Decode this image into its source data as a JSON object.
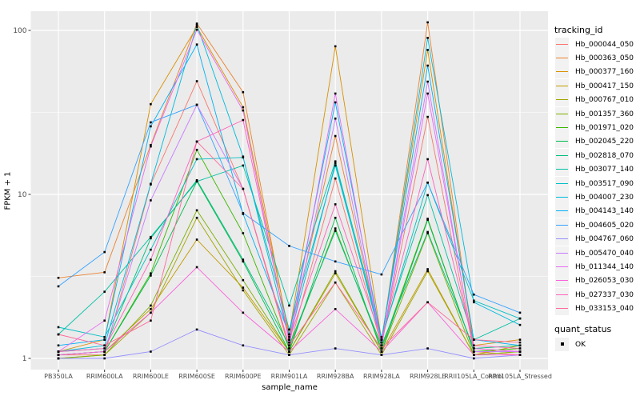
{
  "figure": {
    "panel_background": "#EBEBEB",
    "grid_color": "#FFFFFF",
    "legend_key_background": "#F2F2F2",
    "tick_color": "#333333",
    "tick_label_color": "#4D4D4D",
    "point_color": "#000000"
  },
  "legend": {
    "tracking_title": "tracking_id",
    "quant_title": "quant_status",
    "quant_item_label": "OK"
  },
  "chart_data": {
    "type": "line",
    "title": "",
    "xlabel": "sample_name",
    "ylabel": "FPKM + 1",
    "y_scale": "log10",
    "y_ticks": [
      1,
      10,
      100
    ],
    "y_minor_ticks": [
      3.162,
      31.62
    ],
    "ylim": [
      0.85,
      131
    ],
    "grid": true,
    "legend_position": "right",
    "point_shape": "square",
    "point_legend": {
      "title": "quant_status",
      "items": [
        "OK"
      ]
    },
    "categories": [
      "PB350LA",
      "RRIM600LA",
      "RRIM600LE",
      "RRIM600SE",
      "RRIM600PE",
      "RRIM901LA",
      "RRIM928BA",
      "RRIM928LA",
      "RRIM928LE",
      "RRII105LA_Control",
      "RRII105LA_Stressed"
    ],
    "series": [
      {
        "name": "Hb_000044_050",
        "color": "#F8766D",
        "values": [
          1.05,
          1.05,
          11.5,
          49.0,
          10.8,
          1.15,
          12.5,
          1.2,
          29.7,
          1.1,
          1.05
        ]
      },
      {
        "name": "Hb_000363_050",
        "color": "#EA8331",
        "values": [
          3.1,
          3.35,
          20.0,
          110.0,
          42.0,
          1.35,
          22.7,
          1.25,
          112.0,
          1.15,
          1.1
        ]
      },
      {
        "name": "Hb_000377_160",
        "color": "#D89000",
        "values": [
          1.1,
          1.3,
          35.5,
          105.0,
          34.0,
          1.4,
          80.0,
          1.3,
          76.0,
          1.2,
          1.3
        ]
      },
      {
        "name": "Hb_000417_150",
        "color": "#C09B00",
        "values": [
          1.05,
          1.1,
          2.0,
          5.3,
          2.7,
          1.1,
          3.3,
          1.1,
          3.5,
          1.05,
          1.2
        ]
      },
      {
        "name": "Hb_000767_010",
        "color": "#A3A500",
        "values": [
          1.0,
          1.05,
          1.9,
          7.2,
          2.6,
          1.05,
          2.9,
          1.05,
          3.4,
          1.05,
          1.1
        ]
      },
      {
        "name": "Hb_001357_360",
        "color": "#7CAE00",
        "values": [
          1.0,
          1.05,
          2.1,
          8.0,
          3.0,
          1.1,
          3.4,
          1.1,
          5.8,
          1.05,
          1.1
        ]
      },
      {
        "name": "Hb_001971_020",
        "color": "#39B600",
        "values": [
          1.05,
          1.1,
          3.3,
          18.7,
          5.8,
          1.15,
          6.2,
          1.15,
          7.1,
          1.1,
          1.15
        ]
      },
      {
        "name": "Hb_002045_220",
        "color": "#00BB4E",
        "values": [
          1.05,
          1.1,
          3.2,
          12.0,
          3.9,
          1.1,
          7.2,
          1.1,
          7.0,
          1.1,
          1.1
        ]
      },
      {
        "name": "Hb_002818_070",
        "color": "#00BF7D",
        "values": [
          1.1,
          1.15,
          5.4,
          12.2,
          4.0,
          1.2,
          6.0,
          1.2,
          5.9,
          1.15,
          1.2
        ]
      },
      {
        "name": "Hb_003077_140",
        "color": "#00C1A3",
        "values": [
          1.4,
          2.55,
          5.5,
          12.0,
          15.0,
          2.1,
          15.9,
          1.35,
          9.9,
          1.3,
          1.75
        ]
      },
      {
        "name": "Hb_003517_090",
        "color": "#00BFC4",
        "values": [
          1.55,
          1.35,
          4.6,
          16.4,
          16.8,
          1.5,
          15.0,
          1.3,
          11.8,
          2.25,
          1.75
        ]
      },
      {
        "name": "Hb_004007_230",
        "color": "#00BADE",
        "values": [
          1.1,
          1.2,
          11.6,
          108.0,
          17.0,
          1.3,
          15.5,
          1.25,
          90.0,
          2.2,
          1.6
        ]
      },
      {
        "name": "Hb_004143_140",
        "color": "#00B0F6",
        "values": [
          1.2,
          1.3,
          26.0,
          82.0,
          7.6,
          1.4,
          36.4,
          1.3,
          61.0,
          1.3,
          1.2
        ]
      },
      {
        "name": "Hb_004605_020",
        "color": "#35A2FF",
        "values": [
          2.75,
          4.45,
          27.5,
          35.2,
          7.7,
          4.85,
          3.9,
          3.25,
          11.8,
          2.45,
          1.9
        ]
      },
      {
        "name": "Hb_004767_060",
        "color": "#9590FF",
        "values": [
          1.0,
          1.0,
          1.1,
          1.5,
          1.2,
          1.05,
          1.15,
          1.05,
          1.15,
          1.0,
          1.05
        ]
      },
      {
        "name": "Hb_005470_040",
        "color": "#C77CFF",
        "values": [
          1.05,
          1.1,
          9.2,
          35.2,
          10.8,
          1.2,
          29.0,
          1.2,
          48.7,
          1.1,
          1.1
        ]
      },
      {
        "name": "Hb_011344_140",
        "color": "#E76BF3",
        "values": [
          1.1,
          1.7,
          19.6,
          101.0,
          32.5,
          1.25,
          41.2,
          1.2,
          41.2,
          1.15,
          1.1
        ]
      },
      {
        "name": "Hb_026053_030",
        "color": "#FA62DB",
        "values": [
          1.05,
          1.1,
          1.9,
          3.6,
          1.9,
          1.1,
          2.0,
          1.1,
          2.2,
          1.05,
          1.05
        ]
      },
      {
        "name": "Hb_027337_030",
        "color": "#FF62BC",
        "values": [
          1.1,
          1.15,
          4.0,
          21.0,
          28.4,
          1.3,
          8.7,
          1.3,
          16.4,
          1.2,
          1.15
        ]
      },
      {
        "name": "Hb_033153_040",
        "color": "#FF6A98",
        "values": [
          1.4,
          1.2,
          1.7,
          21.0,
          10.8,
          1.2,
          2.9,
          1.15,
          2.2,
          1.3,
          1.25
        ]
      }
    ]
  }
}
